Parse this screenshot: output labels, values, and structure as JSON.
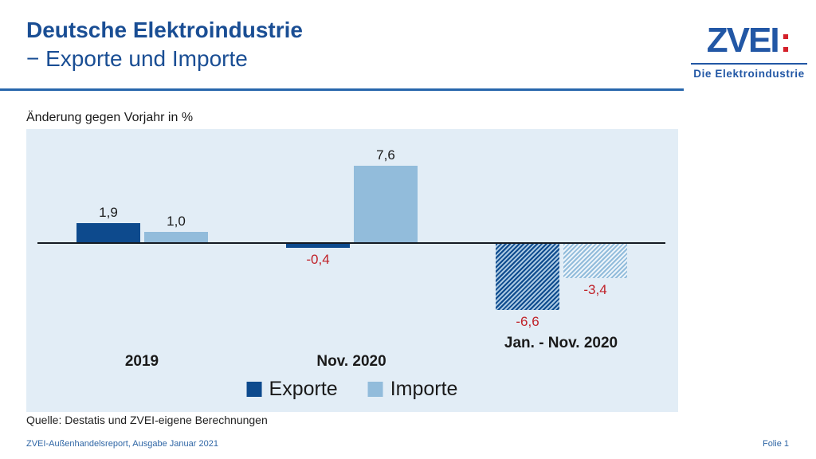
{
  "header": {
    "title_line1": "Deutsche Elektroindustrie",
    "title_line2": "− Exporte und Importe"
  },
  "logo": {
    "wordmark": "ZVEI",
    "colon": ":",
    "tagline": "Die Elektroindustrie"
  },
  "chart": {
    "unit_label": "Änderung gegen Vorjahr in %"
  },
  "chart_data": {
    "type": "bar",
    "title": "Änderung gegen Vorjahr in %",
    "categories": [
      "2019",
      "Nov. 2020",
      "Jan. - Nov. 2020"
    ],
    "series": [
      {
        "name": "Exporte",
        "values": [
          1.9,
          -0.4,
          -6.6
        ],
        "color": "#0d4a8d"
      },
      {
        "name": "Importe",
        "values": [
          1.0,
          7.6,
          -3.4
        ],
        "color": "#92bcdb"
      }
    ],
    "value_labels": [
      [
        "1,9",
        "-0,4",
        "-6,6"
      ],
      [
        "1,0",
        "7,6",
        "-3,4"
      ]
    ],
    "hatched_categories": [
      false,
      false,
      true
    ],
    "xlabel": "",
    "ylabel": "Änderung gegen Vorjahr in %",
    "ylim": [
      -8,
      9
    ],
    "grid": false,
    "legend_position": "bottom-center",
    "positive_label_color": "#1a1a1a",
    "negative_label_color": "#c02128"
  },
  "footer": {
    "source": "Quelle: Destatis und ZVEI-eigene Berechnungen",
    "report": "ZVEI-Außenhandelsreport, Ausgabe Januar 2021",
    "page": "Folie 1"
  },
  "colors": {
    "title_blue": "#1a4e94",
    "rule_blue": "#2766ac",
    "logo_blue": "#2257a5",
    "logo_red": "#d4202a",
    "plot_bg": "#e2edf6",
    "axis_color": "#141a22",
    "neg_red": "#c02128",
    "text_black": "#1a1a1a",
    "footer_blue": "#2f66a5",
    "bar_dark": "#0d4a8d",
    "bar_light": "#92bcdb"
  }
}
